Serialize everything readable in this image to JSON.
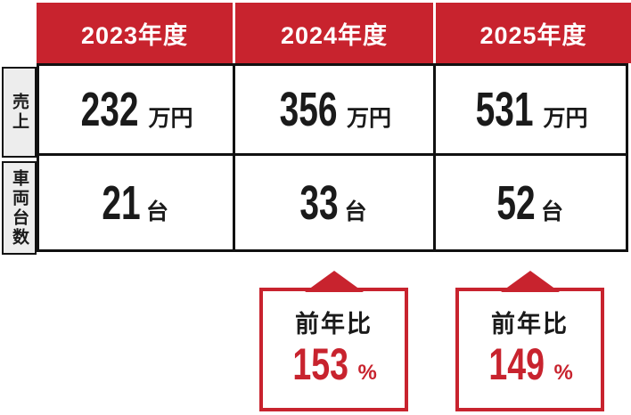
{
  "palette": {
    "accent_red": "#c8232e",
    "border_black": "#111111",
    "row_label_bg": "#ededed",
    "text_black": "#1a1a1a",
    "background": "#ffffff"
  },
  "table": {
    "col_headers": [
      "2023年度",
      "2024年度",
      "2025年度"
    ],
    "rows": [
      {
        "label": "売上",
        "cells": [
          {
            "value": "232",
            "unit": "万円"
          },
          {
            "value": "356",
            "unit": "万円"
          },
          {
            "value": "531",
            "unit": "万円"
          }
        ]
      },
      {
        "label": "車両台数",
        "cells": [
          {
            "value": "21",
            "unit": "台"
          },
          {
            "value": "33",
            "unit": "台"
          },
          {
            "value": "52",
            "unit": "台"
          }
        ]
      }
    ]
  },
  "callouts": [
    {
      "label": "前年比",
      "value": "153",
      "unit": "%"
    },
    {
      "label": "前年比",
      "value": "149",
      "unit": "%"
    }
  ],
  "chart_data": {
    "type": "table",
    "title": "",
    "categories": [
      "2023年度",
      "2024年度",
      "2025年度"
    ],
    "series": [
      {
        "name": "売上",
        "unit": "万円",
        "values": [
          232,
          356,
          531
        ]
      },
      {
        "name": "車両台数",
        "unit": "台",
        "values": [
          21,
          33,
          52
        ]
      }
    ],
    "annotations": [
      {
        "category": "2024年度",
        "label": "前年比",
        "value": 153,
        "unit": "%"
      },
      {
        "category": "2025年度",
        "label": "前年比",
        "value": 149,
        "unit": "%"
      }
    ]
  }
}
